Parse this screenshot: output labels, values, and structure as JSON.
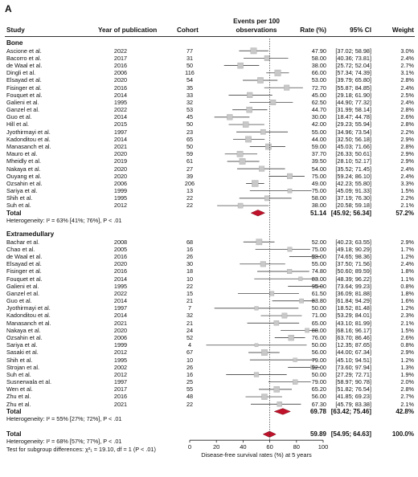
{
  "panel_label": "A",
  "headers": {
    "study": "Study",
    "year": "Year of publication",
    "cohort": "Cohort",
    "events_line1": "Events per 100",
    "events_line2": "observations",
    "rate": "Rate (%)",
    "ci": "95% CI",
    "weight": "Weight"
  },
  "subgroups": [
    {
      "name": "Bone",
      "rows": [
        {
          "study": "Ascione et al.",
          "year": "2022",
          "cohort": "77",
          "rate": "47.90",
          "ci": "[37.02; 58.98]",
          "weight": "3.0%"
        },
        {
          "study": "Bacorro et al.",
          "year": "2017",
          "cohort": "31",
          "rate": "58.00",
          "ci": "[40.36; 73.81]",
          "weight": "2.4%"
        },
        {
          "study": "de Waal et al.",
          "year": "2016",
          "cohort": "50",
          "rate": "38.00",
          "ci": "[25.72; 52.04]",
          "weight": "2.7%"
        },
        {
          "study": "Dingli et al.",
          "year": "2006",
          "cohort": "116",
          "rate": "66.00",
          "ci": "[57.34; 74.39]",
          "weight": "3.1%"
        },
        {
          "study": "Elsayad et al.",
          "year": "2020",
          "cohort": "54",
          "rate": "53.00",
          "ci": "[39.79; 65.80]",
          "weight": "2.8%"
        },
        {
          "study": "Fisinger et al.",
          "year": "2016",
          "cohort": "35",
          "rate": "72.70",
          "ci": "[55.87; 84.85]",
          "weight": "2.4%"
        },
        {
          "study": "Fouquet et al.",
          "year": "2014",
          "cohort": "33",
          "rate": "45.00",
          "ci": "[29.18; 61.90]",
          "weight": "2.5%"
        },
        {
          "study": "Galieni et al.",
          "year": "1995",
          "cohort": "32",
          "rate": "62.50",
          "ci": "[44.90; 77.32]",
          "weight": "2.4%"
        },
        {
          "study": "Ganzel et al.",
          "year": "2022",
          "cohort": "53",
          "rate": "44.70",
          "ci": "[31.99; 58.14]",
          "weight": "2.8%"
        },
        {
          "study": "Guo et al.",
          "year": "2014",
          "cohort": "45",
          "rate": "30.00",
          "ci": "[18.47; 44.78]",
          "weight": "2.6%"
        },
        {
          "study": "Hill et al.",
          "year": "2015",
          "cohort": "50",
          "rate": "42.00",
          "ci": "[29.23; 55.94]",
          "weight": "2.8%"
        },
        {
          "study": "Jyothirmayi et al.",
          "year": "1997",
          "cohort": "23",
          "rate": "55.00",
          "ci": "[34.96; 73.54]",
          "weight": "2.2%"
        },
        {
          "study": "Kadonditou et al.",
          "year": "2014",
          "cohort": "65",
          "rate": "44.00",
          "ci": "[32.50; 56.18]",
          "weight": "2.9%"
        },
        {
          "study": "Manasanch et al.",
          "year": "2021",
          "cohort": "50",
          "rate": "59.00",
          "ci": "[45.03; 71.66]",
          "weight": "2.8%"
        },
        {
          "study": "Mauro et al.",
          "year": "2020",
          "cohort": "59",
          "rate": "37.70",
          "ci": "[26.33; 50.61]",
          "weight": "2.9%"
        },
        {
          "study": "Mheidly et al.",
          "year": "2019",
          "cohort": "61",
          "rate": "39.50",
          "ci": "[28.10; 52.17]",
          "weight": "2.9%"
        },
        {
          "study": "Nakaya et al.",
          "year": "2020",
          "cohort": "27",
          "rate": "54.00",
          "ci": "[35.52; 71.45]",
          "weight": "2.4%"
        },
        {
          "study": "Ouyang et al.",
          "year": "2020",
          "cohort": "39",
          "rate": "75.00",
          "ci": "[59.24; 86.10]",
          "weight": "2.4%"
        },
        {
          "study": "Ozsahin et al.",
          "year": "2006",
          "cohort": "206",
          "rate": "49.00",
          "ci": "[42.23; 55.80]",
          "weight": "3.3%"
        },
        {
          "study": "Sariya et al.",
          "year": "1999",
          "cohort": "13",
          "rate": "75.00",
          "ci": "[45.09; 91.33]",
          "weight": "1.5%"
        },
        {
          "study": "Shih et al.",
          "year": "1995",
          "cohort": "22",
          "rate": "58.00",
          "ci": "[37.19; 76.30]",
          "weight": "2.2%"
        },
        {
          "study": "Suh et al.",
          "year": "2012",
          "cohort": "22",
          "rate": "38.00",
          "ci": "[20.58; 59.18]",
          "weight": "2.1%"
        }
      ],
      "total_label": "Total",
      "total_rate": "51.14",
      "total_ci": "[45.92; 56.34]",
      "total_weight": "57.2%",
      "heterogeneity": "Heterogeneity: I² = 63% [41%; 76%], P < .01"
    },
    {
      "name": "Extramedullary",
      "rows": [
        {
          "study": "Bachar et al.",
          "year": "2008",
          "cohort": "68",
          "rate": "52.00",
          "ci": "[40.23; 63.55]",
          "weight": "2.9%"
        },
        {
          "study": "Chao et al.",
          "year": "2005",
          "cohort": "16",
          "rate": "75.00",
          "ci": "[49.18; 90.29]",
          "weight": "1.7%"
        },
        {
          "study": "de Waal et al.",
          "year": "2016",
          "cohort": "26",
          "rate": "93.00",
          "ci": "[74.65; 98.36]",
          "weight": "1.2%"
        },
        {
          "study": "Elsayad et al.",
          "year": "2020",
          "cohort": "30",
          "rate": "55.00",
          "ci": "[37.50; 71.56]",
          "weight": "2.4%"
        },
        {
          "study": "Fisinger et al.",
          "year": "2016",
          "cohort": "18",
          "rate": "74.80",
          "ci": "[50.60; 89.59]",
          "weight": "1.8%"
        },
        {
          "study": "Fouquet et al.",
          "year": "2014",
          "cohort": "10",
          "rate": "83.00",
          "ci": "[48.39; 96.22]",
          "weight": "1.1%"
        },
        {
          "study": "Galieni et al.",
          "year": "1995",
          "cohort": "22",
          "rate": "95.00",
          "ci": "[73.64; 99.23]",
          "weight": "0.8%"
        },
        {
          "study": "Ganzel et al.",
          "year": "2022",
          "cohort": "15",
          "rate": "61.50",
          "ci": "[36.09; 81.88]",
          "weight": "1.8%"
        },
        {
          "study": "Guo et al.",
          "year": "2014",
          "cohort": "21",
          "rate": "83.80",
          "ci": "[61.84; 94.29]",
          "weight": "1.6%"
        },
        {
          "study": "Jyothirmayi et al.",
          "year": "1997",
          "cohort": "7",
          "rate": "50.00",
          "ci": "[18.52; 81.48]",
          "weight": "1.2%"
        },
        {
          "study": "Kadonditou et al.",
          "year": "2014",
          "cohort": "32",
          "rate": "71.00",
          "ci": "[53.29; 84.01]",
          "weight": "2.3%"
        },
        {
          "study": "Manasanch et al.",
          "year": "2021",
          "cohort": "21",
          "rate": "65.00",
          "ci": "[43.10; 81.99]",
          "weight": "2.1%"
        },
        {
          "study": "Nakaya et al.",
          "year": "2020",
          "cohort": "24",
          "rate": "88.00",
          "ci": "[68.16; 96.17]",
          "weight": "1.5%"
        },
        {
          "study": "Ozsahin et al.",
          "year": "2006",
          "cohort": "52",
          "rate": "76.00",
          "ci": "[63.70; 86.46]",
          "weight": "2.6%"
        },
        {
          "study": "Sariya et al.",
          "year": "1999",
          "cohort": "4",
          "rate": "50.00",
          "ci": "[12.35; 87.65]",
          "weight": "0.8%"
        },
        {
          "study": "Sasaki et al.",
          "year": "2012",
          "cohort": "67",
          "rate": "56.00",
          "ci": "[44.00; 67.34]",
          "weight": "2.9%"
        },
        {
          "study": "Shih et al.",
          "year": "1995",
          "cohort": "10",
          "rate": "79.00",
          "ci": "[45.10; 94.51]",
          "weight": "1.2%"
        },
        {
          "study": "Strojan et al.",
          "year": "2002",
          "cohort": "26",
          "rate": "92.00",
          "ci": "[73.60; 97.94]",
          "weight": "1.3%"
        },
        {
          "study": "Suh et al.",
          "year": "2012",
          "cohort": "16",
          "rate": "50.00",
          "ci": "[27.29; 72.71]",
          "weight": "1.9%"
        },
        {
          "study": "Susnerwala et al.",
          "year": "1997",
          "cohort": "25",
          "rate": "79.00",
          "ci": "[58.97; 90.78]",
          "weight": "2.0%"
        },
        {
          "study": "Wen et al.",
          "year": "2017",
          "cohort": "55",
          "rate": "65.20",
          "ci": "[51.82; 76.54]",
          "weight": "2.8%"
        },
        {
          "study": "Zhu et al.",
          "year": "2016",
          "cohort": "48",
          "rate": "56.00",
          "ci": "[41.85; 69.23]",
          "weight": "2.7%"
        },
        {
          "study": "Zhu et al.",
          "year": "2021",
          "cohort": "22",
          "rate": "67.30",
          "ci": "[45.79; 83.38]",
          "weight": "2.1%"
        }
      ],
      "total_label": "Total",
      "total_rate": "69.78",
      "total_ci": "[63.42; 75.46]",
      "total_weight": "42.8%",
      "heterogeneity": "Heterogeneity: I² = 55% [27%; 72%], P < .01"
    }
  ],
  "overall": {
    "label": "Total",
    "rate": "59.89",
    "ci": "[54.95; 64.63]",
    "weight": "100.0%",
    "heterogeneity": "Heterogeneity: I² = 68% [57%; 77%], P < .01",
    "subgroup_test": "Test for subgroup differences: χ²₁ = 19.10, df = 1 (P < .01)"
  },
  "chart_data": {
    "type": "forest",
    "xlabel": "Disease-free survival rates (%) at 5 years",
    "x_ticks": [
      "0",
      "20",
      "40",
      "60",
      "80",
      "100"
    ],
    "xlim": [
      0,
      100
    ],
    "reference_line": 59.89,
    "colors": {
      "summary": "#c0122a",
      "marker": "#c8c8c8",
      "line": "#222222"
    },
    "bone": {
      "estimates": [
        47.9,
        58.0,
        38.0,
        66.0,
        53.0,
        72.7,
        45.0,
        62.5,
        44.7,
        30.0,
        42.0,
        55.0,
        44.0,
        59.0,
        37.7,
        39.5,
        54.0,
        75.0,
        49.0,
        75.0,
        58.0,
        38.0
      ],
      "lower": [
        37.02,
        40.36,
        25.72,
        57.34,
        39.79,
        55.87,
        29.18,
        44.9,
        31.99,
        18.47,
        29.23,
        34.96,
        32.5,
        45.03,
        26.33,
        28.1,
        35.52,
        59.24,
        42.23,
        45.09,
        37.19,
        20.58
      ],
      "upper": [
        58.98,
        73.81,
        52.04,
        74.39,
        65.8,
        84.85,
        61.9,
        77.32,
        58.14,
        44.78,
        55.94,
        73.54,
        56.18,
        71.66,
        50.61,
        52.17,
        71.45,
        86.1,
        55.8,
        91.33,
        76.3,
        59.18
      ],
      "weights": [
        3.0,
        2.4,
        2.7,
        3.1,
        2.8,
        2.4,
        2.5,
        2.4,
        2.8,
        2.6,
        2.8,
        2.2,
        2.9,
        2.8,
        2.9,
        2.9,
        2.4,
        2.4,
        3.3,
        1.5,
        2.2,
        2.1
      ],
      "pooled": {
        "estimate": 51.14,
        "lower": 45.92,
        "upper": 56.34
      }
    },
    "extramedullary": {
      "estimates": [
        52.0,
        75.0,
        93.0,
        55.0,
        74.8,
        83.0,
        95.0,
        61.5,
        83.8,
        50.0,
        71.0,
        65.0,
        88.0,
        76.0,
        50.0,
        56.0,
        79.0,
        92.0,
        50.0,
        79.0,
        65.2,
        56.0,
        67.3
      ],
      "lower": [
        40.23,
        49.18,
        74.65,
        37.5,
        50.6,
        48.39,
        73.64,
        36.09,
        61.84,
        18.52,
        53.29,
        43.1,
        68.16,
        63.7,
        12.35,
        44.0,
        45.1,
        73.6,
        27.29,
        58.97,
        51.82,
        41.85,
        45.79
      ],
      "upper": [
        63.55,
        90.29,
        98.36,
        71.56,
        89.59,
        96.22,
        99.23,
        81.88,
        94.29,
        81.48,
        84.01,
        81.99,
        96.17,
        86.46,
        87.65,
        67.34,
        94.51,
        97.94,
        72.71,
        90.78,
        76.54,
        69.23,
        83.38
      ],
      "weights": [
        2.9,
        1.7,
        1.2,
        2.4,
        1.8,
        1.1,
        0.8,
        1.8,
        1.6,
        1.2,
        2.3,
        2.1,
        1.5,
        2.6,
        0.8,
        2.9,
        1.2,
        1.3,
        1.9,
        2.0,
        2.8,
        2.7,
        2.1
      ],
      "pooled": {
        "estimate": 69.78,
        "lower": 63.42,
        "upper": 75.46
      }
    },
    "overall": {
      "estimate": 59.89,
      "lower": 54.95,
      "upper": 64.63
    }
  }
}
